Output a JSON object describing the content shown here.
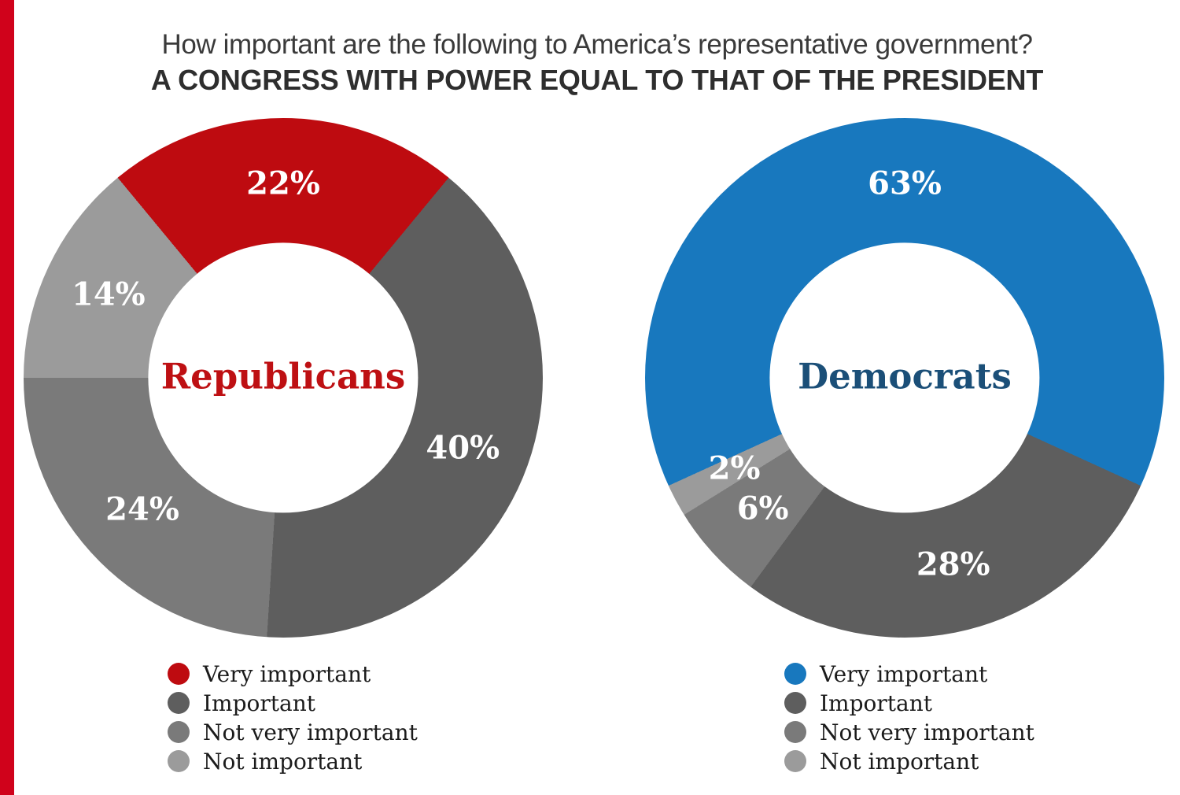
{
  "page": {
    "background": "#FFFFFF"
  },
  "palette": {
    "accent_bar": "#D0021B",
    "question_text": "#3A3A3A",
    "subtitle_text": "#2E2E2E",
    "legend_text": "#1B1B1B",
    "slice_label_text": "#FFFFFF",
    "republican_red": "#BE0B10",
    "democrat_blue": "#1878BE",
    "gray_dark": "#5E5E5E",
    "gray_medium": "#7A7A7A",
    "gray_light": "#9B9B9B"
  },
  "header": {
    "question": "How important are the following to America’s representative government?",
    "subtitle": "A CONGRESS WITH POWER EQUAL TO THAT OF THE PRESIDENT"
  },
  "chart_data": [
    {
      "type": "pie",
      "variant": "donut",
      "title": "Republicans",
      "categories": [
        "Very important",
        "Important",
        "Not very important",
        "Not important"
      ],
      "values": [
        22,
        40,
        24,
        14
      ],
      "data_labels": [
        "22%",
        "40%",
        "24%",
        "14%"
      ],
      "colors": [
        "#BE0B10",
        "#5E5E5E",
        "#7A7A7A",
        "#9B9B9B"
      ],
      "center_label": "Republicans",
      "center_label_color": "#BE1013",
      "layout": {
        "direction": "clockwise",
        "first_slice_centered_at_top": true,
        "legend_position": "bottom-left",
        "hole_ratio": 0.52
      }
    },
    {
      "type": "pie",
      "variant": "donut",
      "title": "Democrats",
      "categories": [
        "Very important",
        "Important",
        "Not very important",
        "Not important"
      ],
      "values": [
        63,
        28,
        6,
        2
      ],
      "data_labels": [
        "63%",
        "28%",
        "6%",
        "2%"
      ],
      "colors": [
        "#1878BE",
        "#5E5E5E",
        "#7A7A7A",
        "#9B9B9B"
      ],
      "center_label": "Democrats",
      "center_label_color": "#1B4F78",
      "layout": {
        "direction": "clockwise",
        "first_slice_centered_at_top": true,
        "legend_position": "bottom-left",
        "hole_ratio": 0.52
      }
    }
  ]
}
